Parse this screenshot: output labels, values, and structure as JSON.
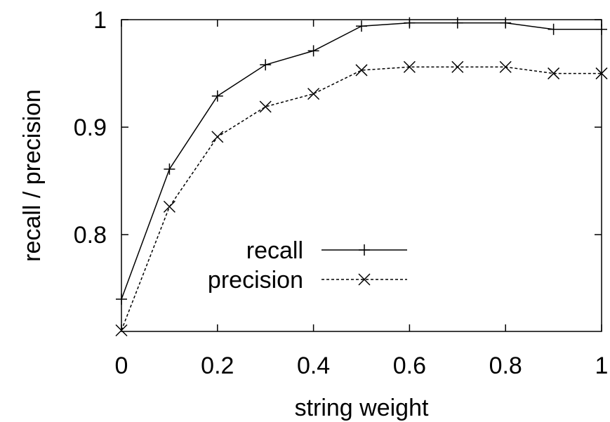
{
  "chart_data": {
    "type": "line",
    "title": "",
    "xlabel": "string weight",
    "ylabel": "recall / precision",
    "xlim": [
      0,
      1
    ],
    "ylim": [
      0.71,
      1.0
    ],
    "x_ticks": [
      "0",
      "0.2",
      "0.4",
      "0.6",
      "0.8",
      "1"
    ],
    "y_ticks": [
      "0.8",
      "0.9",
      "1"
    ],
    "grid": false,
    "legend_position": "center",
    "x": [
      0,
      0.1,
      0.2,
      0.3,
      0.4,
      0.5,
      0.6,
      0.7,
      0.8,
      0.9,
      1.0
    ],
    "series": [
      {
        "name": "recall",
        "marker": "plus",
        "line_style": "solid",
        "values": [
          0.74,
          0.861,
          0.929,
          0.958,
          0.971,
          0.994,
          0.997,
          0.997,
          0.997,
          0.991,
          0.991
        ]
      },
      {
        "name": "precision",
        "marker": "cross",
        "line_style": "dashed",
        "values": [
          0.711,
          0.826,
          0.891,
          0.919,
          0.931,
          0.953,
          0.956,
          0.956,
          0.956,
          0.95,
          0.95
        ]
      }
    ]
  }
}
